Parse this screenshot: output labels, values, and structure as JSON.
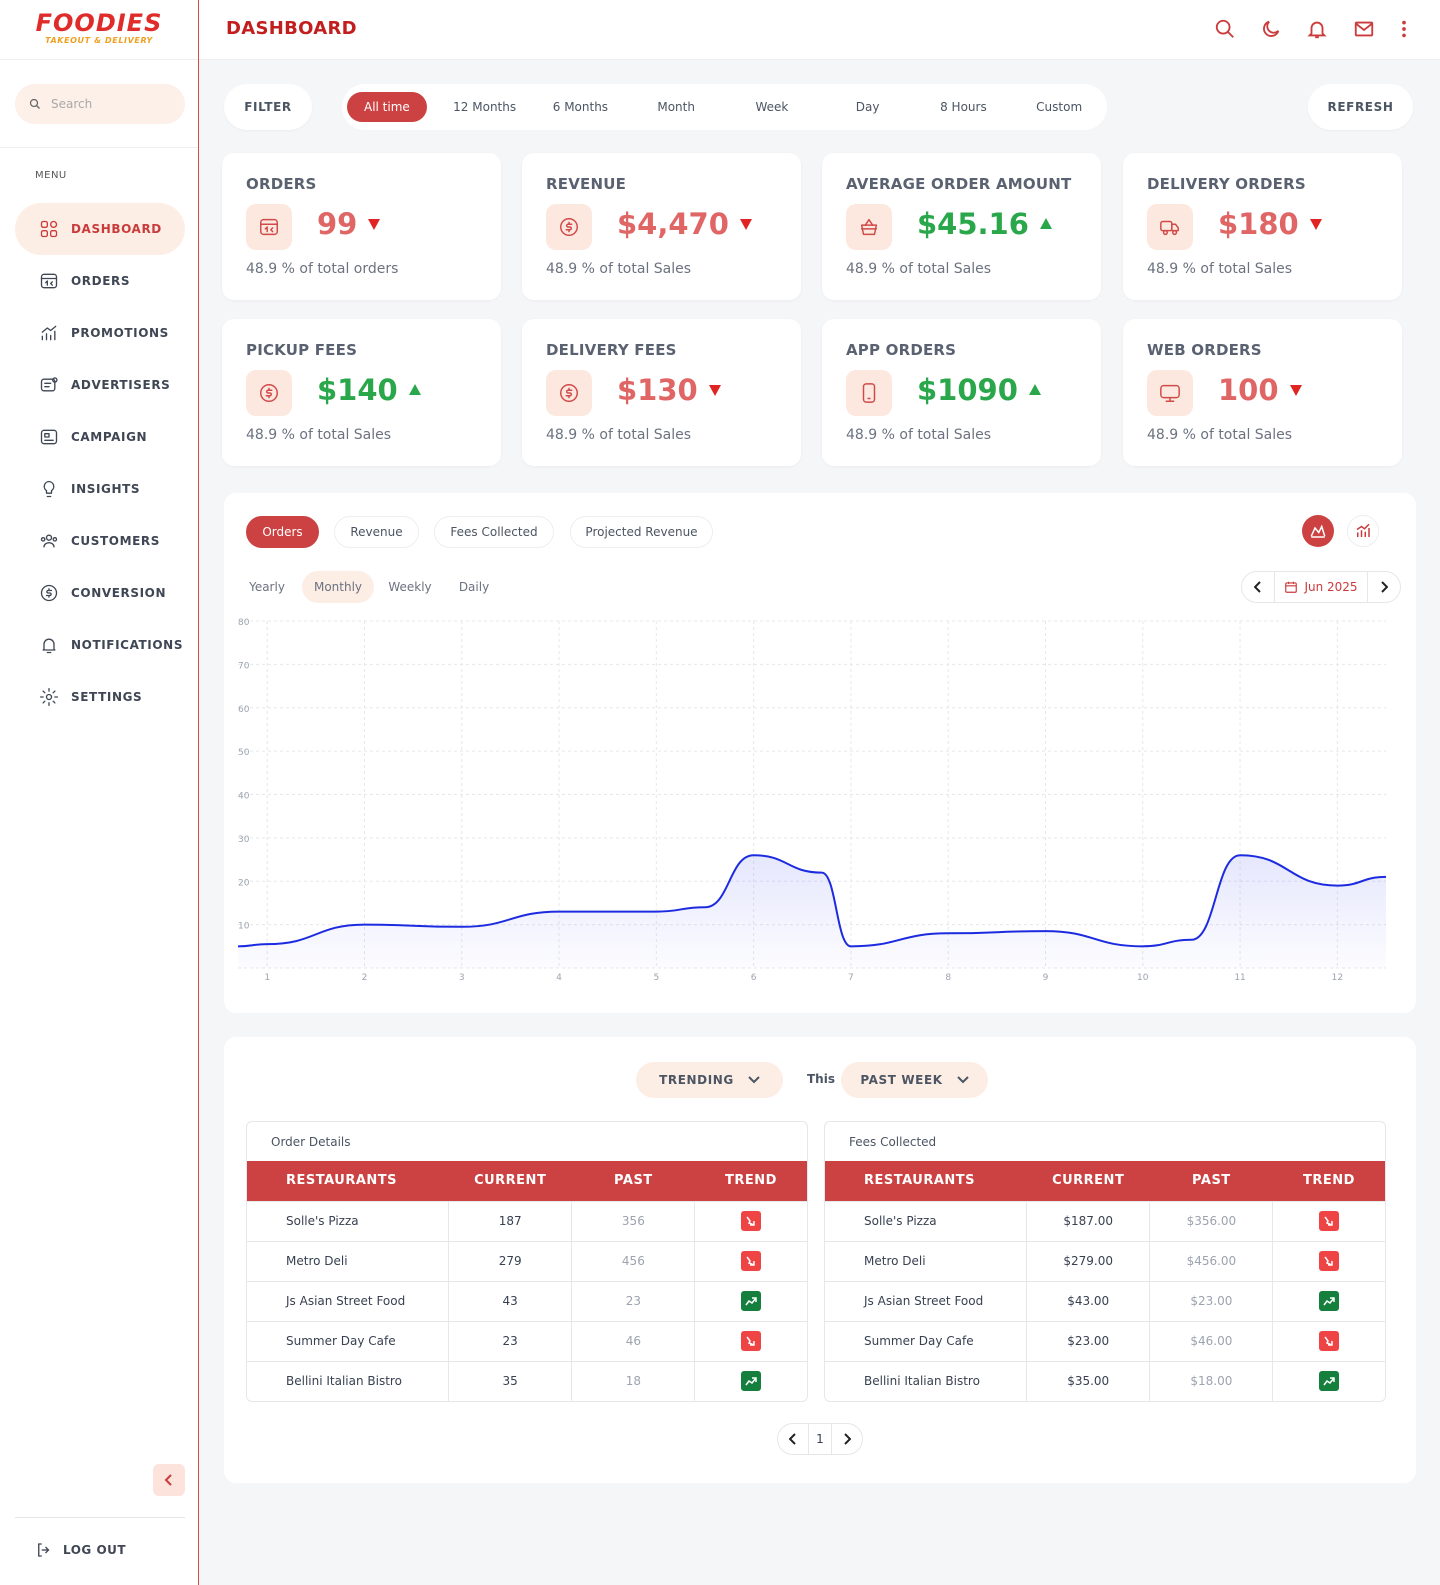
{
  "brand": {
    "name": "FOODIES",
    "tagline": "TAKEOUT & DELIVERY"
  },
  "search": {
    "placeholder": "Search"
  },
  "menu_label": "MENU",
  "nav": [
    {
      "label": "DASHBOARD",
      "icon": "dashboard-icon",
      "active": true
    },
    {
      "label": "ORDERS",
      "icon": "orders-icon"
    },
    {
      "label": "PROMOTIONS",
      "icon": "promotions-icon"
    },
    {
      "label": "ADVERTISERS",
      "icon": "advertisers-icon"
    },
    {
      "label": "CAMPAIGN",
      "icon": "campaign-icon"
    },
    {
      "label": "INSIGHTS",
      "icon": "lightbulb-icon"
    },
    {
      "label": "CUSTOMERS",
      "icon": "users-icon"
    },
    {
      "label": "CONVERSION",
      "icon": "dollar-icon"
    },
    {
      "label": "NOTIFICATIONS",
      "icon": "bell-icon"
    },
    {
      "label": "SETTINGS",
      "icon": "gear-icon"
    }
  ],
  "logout": "LOG OUT",
  "header": {
    "title": "DASHBOARD"
  },
  "filter": {
    "label": "FILTER",
    "refresh": "REFRESH",
    "ranges": [
      "All time",
      "12 Months",
      "6 Months",
      "Month",
      "Week",
      "Day",
      "8 Hours",
      "Custom"
    ],
    "active": "All time"
  },
  "cards": [
    {
      "title": "ORDERS",
      "value": "99",
      "trend": "down",
      "sub": "48.9 % of total orders",
      "icon": "orders-icon"
    },
    {
      "title": "REVENUE",
      "value": "$4,470",
      "trend": "down",
      "sub": "48.9 % of total Sales",
      "icon": "dollar-icon"
    },
    {
      "title": "AVERAGE ORDER AMOUNT",
      "value": "$45.16",
      "trend": "up",
      "sub": "48.9 % of total Sales",
      "icon": "basket-icon"
    },
    {
      "title": "DELIVERY ORDERS",
      "value": "$180",
      "trend": "down",
      "sub": "48.9 % of total Sales",
      "icon": "truck-icon"
    },
    {
      "title": "PICKUP FEES",
      "value": "$140",
      "trend": "up",
      "sub": "48.9 % of total Sales",
      "icon": "dollar-icon"
    },
    {
      "title": "DELIVERY FEES",
      "value": "$130",
      "trend": "down",
      "sub": "48.9 % of total Sales",
      "icon": "dollar-icon"
    },
    {
      "title": "APP ORDERS",
      "value": "$1090",
      "trend": "up",
      "sub": "48.9 % of total Sales",
      "icon": "phone-icon"
    },
    {
      "title": "WEB ORDERS",
      "value": "100",
      "trend": "down",
      "sub": "48.9 % of total Sales",
      "icon": "monitor-icon"
    }
  ],
  "chart_tabs": [
    "Orders",
    "Revenue",
    "Fees Collected",
    "Projected Revenue"
  ],
  "period_tabs": [
    "Yearly",
    "Monthly",
    "Weekly",
    "Daily"
  ],
  "month": "Jun 2025",
  "colors": {
    "accent": "#cc4242",
    "line": "#1d2be0",
    "up": "#2aa74a",
    "down": "#e06666"
  },
  "chart_data": {
    "type": "area",
    "x": [
      0.7,
      1,
      2,
      3,
      4,
      5,
      5.5,
      6,
      6.7,
      7,
      8,
      9,
      10,
      10.5,
      11,
      12,
      12.5
    ],
    "y": [
      5,
      5.5,
      10,
      9.5,
      13,
      13,
      14,
      26,
      22,
      5,
      8,
      8.5,
      5,
      6.5,
      26,
      19,
      21
    ],
    "xticks": [
      1,
      2,
      3,
      4,
      5,
      6,
      7,
      8,
      9,
      10,
      11,
      12
    ],
    "yticks": [
      10,
      20,
      30,
      40,
      50,
      60,
      70,
      80
    ],
    "ylim": [
      0,
      80
    ],
    "grid": true
  },
  "trending": {
    "label": "TRENDING",
    "this": "This",
    "period": "PAST WEEK"
  },
  "tables": [
    {
      "caption": "Order Details",
      "headers": [
        "RESTAURANTS",
        "CURRENT",
        "PAST",
        "TREND"
      ],
      "rows": [
        [
          "Solle's Pizza",
          "187",
          "356",
          "down"
        ],
        [
          "Metro Deli",
          "279",
          "456",
          "down"
        ],
        [
          "Js Asian Street Food",
          "43",
          "23",
          "up"
        ],
        [
          "Summer Day Cafe",
          "23",
          "46",
          "down"
        ],
        [
          "Bellini Italian Bistro",
          "35",
          "18",
          "up"
        ]
      ]
    },
    {
      "caption": "Fees Collected",
      "headers": [
        "RESTAURANTS",
        "CURRENT",
        "PAST",
        "TREND"
      ],
      "rows": [
        [
          "Solle's Pizza",
          "$187.00",
          "$356.00",
          "down"
        ],
        [
          "Metro Deli",
          "$279.00",
          "$456.00",
          "down"
        ],
        [
          "Js Asian Street Food",
          "$43.00",
          "$23.00",
          "up"
        ],
        [
          "Summer Day Cafe",
          "$23.00",
          "$46.00",
          "down"
        ],
        [
          "Bellini Italian Bistro",
          "$35.00",
          "$18.00",
          "up"
        ]
      ]
    }
  ],
  "pagination": {
    "page": "1"
  }
}
